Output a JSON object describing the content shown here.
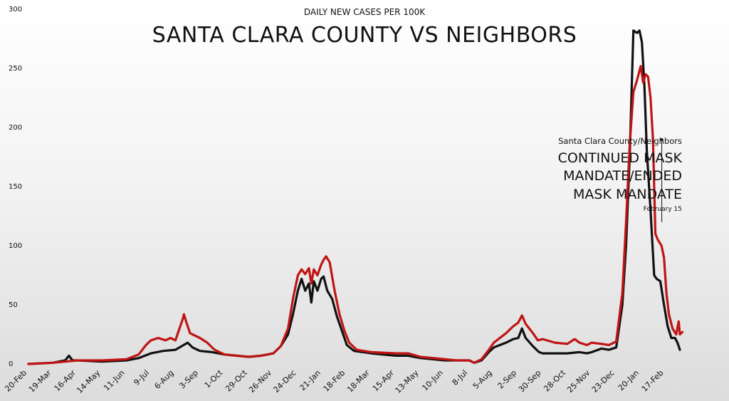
{
  "chart_data": {
    "type": "line",
    "subtitle": "DAILY NEW CASES PER 100K",
    "title": "SANTA CLARA COUNTY VS NEIGHBORS",
    "xlabel": "",
    "ylabel": "",
    "ylim": [
      0,
      300
    ],
    "yticks": [
      0,
      50,
      100,
      150,
      200,
      250,
      300
    ],
    "x_ticks": [
      "20-Feb",
      "19-Mar",
      "16-Apr",
      "14-May",
      "11-Jun",
      "9-Jul",
      "6-Aug",
      "3-Sep",
      "1-Oct",
      "29-Oct",
      "26-Nov",
      "24-Dec",
      "21-Jan",
      "18-Feb",
      "18-Mar",
      "15-Apr",
      "13-May",
      "10-Jun",
      "8-Jul",
      "5-Aug",
      "2-Sep",
      "30-Sep",
      "28-Oct",
      "25-Nov",
      "23-Dec",
      "20-Jan",
      "17-Feb"
    ],
    "grid": false,
    "legend": "none",
    "annotation": {
      "label_top": "Santa Clara County/Neighbors",
      "label_lines": [
        "CONTINUED MASK",
        "MANDATE/ENDED",
        "MASK MANDATE"
      ],
      "date": "February 15",
      "x_index": 25.86
    },
    "series": [
      {
        "color": "#111111",
        "points": [
          [
            0,
            0
          ],
          [
            1,
            1
          ],
          [
            1.5,
            3
          ],
          [
            1.65,
            7
          ],
          [
            1.8,
            3
          ],
          [
            2,
            3
          ],
          [
            3,
            2
          ],
          [
            4,
            3
          ],
          [
            4.5,
            5
          ],
          [
            5,
            9
          ],
          [
            5.5,
            11
          ],
          [
            6,
            12
          ],
          [
            6.5,
            18
          ],
          [
            6.7,
            14
          ],
          [
            7,
            11
          ],
          [
            7.5,
            10
          ],
          [
            8,
            8
          ],
          [
            8.5,
            7
          ],
          [
            9,
            6
          ],
          [
            9.5,
            7
          ],
          [
            10,
            9
          ],
          [
            10.3,
            15
          ],
          [
            10.6,
            25
          ],
          [
            10.8,
            42
          ],
          [
            11,
            62
          ],
          [
            11.15,
            72
          ],
          [
            11.3,
            62
          ],
          [
            11.45,
            68
          ],
          [
            11.55,
            52
          ],
          [
            11.65,
            70
          ],
          [
            11.8,
            62
          ],
          [
            11.95,
            72
          ],
          [
            12.05,
            74
          ],
          [
            12.2,
            62
          ],
          [
            12.4,
            55
          ],
          [
            12.6,
            40
          ],
          [
            12.8,
            28
          ],
          [
            13,
            16
          ],
          [
            13.3,
            11
          ],
          [
            14,
            9
          ],
          [
            15,
            7
          ],
          [
            15.5,
            7
          ],
          [
            16,
            5
          ],
          [
            17,
            3
          ],
          [
            17.5,
            3
          ],
          [
            18,
            3
          ],
          [
            18.2,
            1
          ],
          [
            18.5,
            3
          ],
          [
            18.8,
            10
          ],
          [
            19,
            14
          ],
          [
            19.5,
            18
          ],
          [
            19.8,
            21
          ],
          [
            20,
            22
          ],
          [
            20.15,
            30
          ],
          [
            20.3,
            22
          ],
          [
            20.6,
            15
          ],
          [
            20.85,
            10
          ],
          [
            21,
            9
          ],
          [
            21.5,
            9
          ],
          [
            22,
            9
          ],
          [
            22.5,
            10
          ],
          [
            22.8,
            9
          ],
          [
            23,
            10
          ],
          [
            23.4,
            13
          ],
          [
            23.7,
            12
          ],
          [
            24,
            14
          ],
          [
            24.25,
            50
          ],
          [
            24.4,
            100
          ],
          [
            24.55,
            175
          ],
          [
            24.7,
            282
          ],
          [
            24.85,
            280
          ],
          [
            24.95,
            282
          ],
          [
            25.05,
            272
          ],
          [
            25.15,
            235
          ],
          [
            25.25,
            180
          ],
          [
            25.4,
            130
          ],
          [
            25.55,
            75
          ],
          [
            25.65,
            72
          ],
          [
            25.8,
            70
          ],
          [
            25.95,
            50
          ],
          [
            26.1,
            32
          ],
          [
            26.25,
            22
          ],
          [
            26.4,
            22
          ],
          [
            26.5,
            18
          ],
          [
            26.6,
            12
          ]
        ]
      },
      {
        "color": "#c01414",
        "points": [
          [
            0,
            0
          ],
          [
            1,
            1
          ],
          [
            1.5,
            2
          ],
          [
            2,
            3
          ],
          [
            3,
            3
          ],
          [
            4,
            4
          ],
          [
            4.5,
            8
          ],
          [
            4.8,
            16
          ],
          [
            5,
            20
          ],
          [
            5.3,
            22
          ],
          [
            5.6,
            20
          ],
          [
            5.8,
            22
          ],
          [
            6,
            20
          ],
          [
            6.3,
            38
          ],
          [
            6.35,
            42
          ],
          [
            6.45,
            35
          ],
          [
            6.6,
            26
          ],
          [
            7,
            22
          ],
          [
            7.3,
            18
          ],
          [
            7.6,
            12
          ],
          [
            8,
            8
          ],
          [
            8.5,
            7
          ],
          [
            9,
            6
          ],
          [
            9.5,
            7
          ],
          [
            10,
            9
          ],
          [
            10.3,
            15
          ],
          [
            10.6,
            30
          ],
          [
            10.8,
            55
          ],
          [
            11,
            75
          ],
          [
            11.15,
            80
          ],
          [
            11.3,
            76
          ],
          [
            11.45,
            81
          ],
          [
            11.55,
            68
          ],
          [
            11.65,
            80
          ],
          [
            11.8,
            75
          ],
          [
            11.95,
            84
          ],
          [
            12.05,
            88
          ],
          [
            12.15,
            91
          ],
          [
            12.3,
            86
          ],
          [
            12.5,
            62
          ],
          [
            12.7,
            42
          ],
          [
            12.9,
            28
          ],
          [
            13.1,
            18
          ],
          [
            13.4,
            12
          ],
          [
            14,
            10
          ],
          [
            15,
            9
          ],
          [
            15.5,
            9
          ],
          [
            16,
            6
          ],
          [
            17,
            4
          ],
          [
            17.5,
            3
          ],
          [
            18,
            3
          ],
          [
            18.2,
            1
          ],
          [
            18.5,
            4
          ],
          [
            18.8,
            12
          ],
          [
            19,
            18
          ],
          [
            19.5,
            26
          ],
          [
            19.8,
            32
          ],
          [
            20,
            35
          ],
          [
            20.15,
            41
          ],
          [
            20.3,
            34
          ],
          [
            20.6,
            26
          ],
          [
            20.8,
            20
          ],
          [
            21,
            21
          ],
          [
            21.5,
            18
          ],
          [
            22,
            17
          ],
          [
            22.3,
            21
          ],
          [
            22.5,
            18
          ],
          [
            22.8,
            16
          ],
          [
            23,
            18
          ],
          [
            23.4,
            17
          ],
          [
            23.7,
            16
          ],
          [
            24,
            19
          ],
          [
            24.25,
            60
          ],
          [
            24.4,
            120
          ],
          [
            24.55,
            185
          ],
          [
            24.7,
            230
          ],
          [
            24.85,
            240
          ],
          [
            25.0,
            252
          ],
          [
            25.1,
            238
          ],
          [
            25.2,
            245
          ],
          [
            25.3,
            243
          ],
          [
            25.4,
            225
          ],
          [
            25.5,
            190
          ],
          [
            25.6,
            110
          ],
          [
            25.7,
            105
          ],
          [
            25.85,
            100
          ],
          [
            25.95,
            90
          ],
          [
            26.05,
            60
          ],
          [
            26.15,
            42
          ],
          [
            26.3,
            30
          ],
          [
            26.45,
            25
          ],
          [
            26.55,
            36
          ],
          [
            26.6,
            25
          ],
          [
            26.7,
            27
          ]
        ]
      }
    ]
  }
}
